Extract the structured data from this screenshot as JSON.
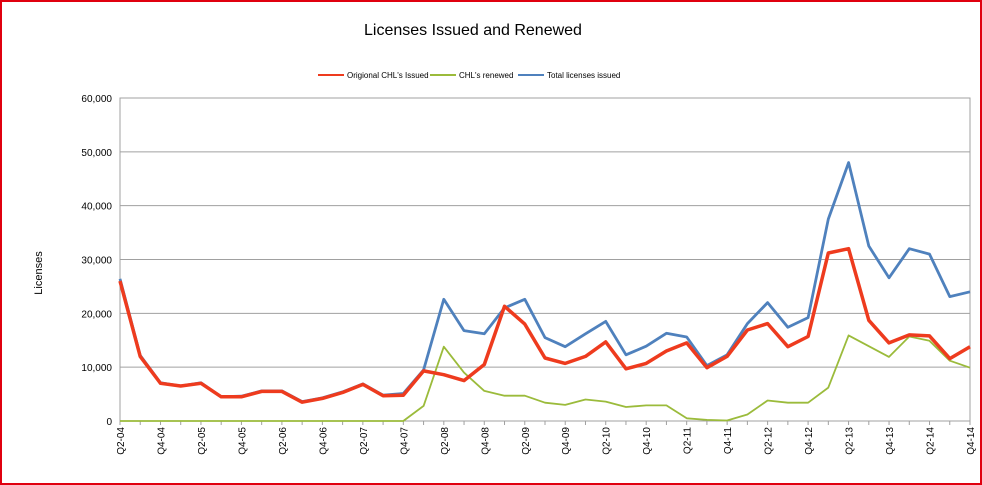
{
  "chart_data": {
    "type": "line",
    "title": "Licenses Issued and Renewed",
    "ylabel": "Licenses",
    "xlabel": "",
    "ylim": [
      0,
      60000
    ],
    "yticks": [
      0,
      10000,
      20000,
      30000,
      40000,
      50000,
      60000
    ],
    "ytick_labels": [
      "0",
      "10,000",
      "20,000",
      "30,000",
      "40,000",
      "50,000",
      "60,000"
    ],
    "grid": true,
    "legend_position": "top",
    "x": [
      "Q2-04",
      "Q3-04",
      "Q4-04",
      "Q1-05",
      "Q2-05",
      "Q3-05",
      "Q4-05",
      "Q1-06",
      "Q2-06",
      "Q3-06",
      "Q4-06",
      "Q1-07",
      "Q2-07",
      "Q3-07",
      "Q4-07",
      "Q1-08",
      "Q2-08",
      "Q3-08",
      "Q4-08",
      "Q1-09",
      "Q2-09",
      "Q3-09",
      "Q4-09",
      "Q1-10",
      "Q2-10",
      "Q3-10",
      "Q4-10",
      "Q1-11",
      "Q2-11",
      "Q3-11",
      "Q4-11",
      "Q1-12",
      "Q2-12",
      "Q3-12",
      "Q4-12",
      "Q1-13",
      "Q2-13",
      "Q3-13",
      "Q4-13",
      "Q1-14",
      "Q2-14",
      "Q3-14",
      "Q4-14"
    ],
    "x_tick_labels": [
      "Q2-04",
      "Q4-04",
      "Q2-05",
      "Q4-05",
      "Q2-06",
      "Q4-06",
      "Q2-07",
      "Q4-07",
      "Q2-08",
      "Q4-08",
      "Q2-09",
      "Q4-09",
      "Q2-10",
      "Q4-10",
      "Q2-11",
      "Q4-11",
      "Q2-12",
      "Q4-12",
      "Q2-13",
      "Q4-13",
      "Q2-14",
      "Q4-14"
    ],
    "series": [
      {
        "name": "Origional CHL's Issued",
        "color": "#ee3b1e",
        "values": [
          26000,
          12000,
          7000,
          6500,
          7000,
          4500,
          4500,
          5500,
          5500,
          3500,
          4200,
          5300,
          6800,
          4700,
          4800,
          9300,
          8600,
          7500,
          10500,
          21300,
          18000,
          11700,
          10700,
          12000,
          14700,
          9700,
          10700,
          13000,
          14500,
          9900,
          12000,
          16900,
          18100,
          13800,
          15700,
          31200,
          32000,
          18700,
          14500,
          16000,
          15800,
          11600,
          13800
        ]
      },
      {
        "name": "CHL's renewed",
        "color": "#9bbb3b",
        "values": [
          0,
          0,
          0,
          0,
          0,
          0,
          0,
          0,
          0,
          0,
          0,
          0,
          0,
          0,
          0,
          2800,
          13800,
          9000,
          5600,
          4700,
          4700,
          3400,
          3000,
          4000,
          3600,
          2600,
          2900,
          2900,
          500,
          200,
          100,
          1200,
          3800,
          3400,
          3400,
          6200,
          15900,
          13900,
          11900,
          15700,
          14900,
          11200,
          9900
        ]
      },
      {
        "name": "Total licenses issued",
        "color": "#4f81bd",
        "values": [
          26400,
          12200,
          7100,
          6500,
          7100,
          4500,
          4600,
          5600,
          5600,
          3600,
          4300,
          5400,
          6900,
          4800,
          5100,
          9500,
          22600,
          16800,
          16200,
          21000,
          22600,
          15500,
          13800,
          16200,
          18500,
          12300,
          13900,
          16300,
          15600,
          10300,
          12300,
          18100,
          22000,
          17400,
          19200,
          37500,
          48000,
          32500,
          26600,
          32000,
          31000,
          23100,
          24000
        ]
      }
    ]
  }
}
